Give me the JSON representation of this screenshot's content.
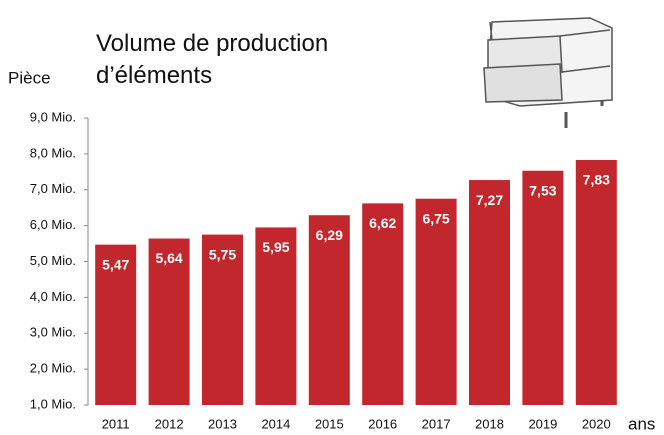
{
  "chart_data": {
    "type": "bar",
    "title": "Volume de production d’éléments",
    "y_label": "Pièce",
    "x_label": "ans",
    "categories": [
      "2011",
      "2012",
      "2013",
      "2014",
      "2015",
      "2016",
      "2017",
      "2018",
      "2019",
      "2020"
    ],
    "values": [
      5.47,
      5.64,
      5.75,
      5.95,
      6.29,
      6.62,
      6.75,
      7.27,
      7.53,
      7.83
    ],
    "value_labels": [
      "5,47",
      "5,64",
      "5,75",
      "5,95",
      "6,29",
      "6,62",
      "6,75",
      "7,27",
      "7,53",
      "7,83"
    ],
    "color": "#c1272d",
    "ylim": [
      1,
      9
    ],
    "yticks": [
      {
        "value": 1,
        "label": "1,0 Mio."
      },
      {
        "value": 2,
        "label": "2,0 Mio."
      },
      {
        "value": 3,
        "label": "3,0 Mio."
      },
      {
        "value": 4,
        "label": "4,0 Mio."
      },
      {
        "value": 5,
        "label": "5,0 Mio."
      },
      {
        "value": 6,
        "label": "6,0 Mio."
      },
      {
        "value": 7,
        "label": "7,0 Mio."
      },
      {
        "value": 8,
        "label": "8,0 Mio."
      },
      {
        "value": 9,
        "label": "9,0 Mio."
      }
    ],
    "grid": false
  }
}
